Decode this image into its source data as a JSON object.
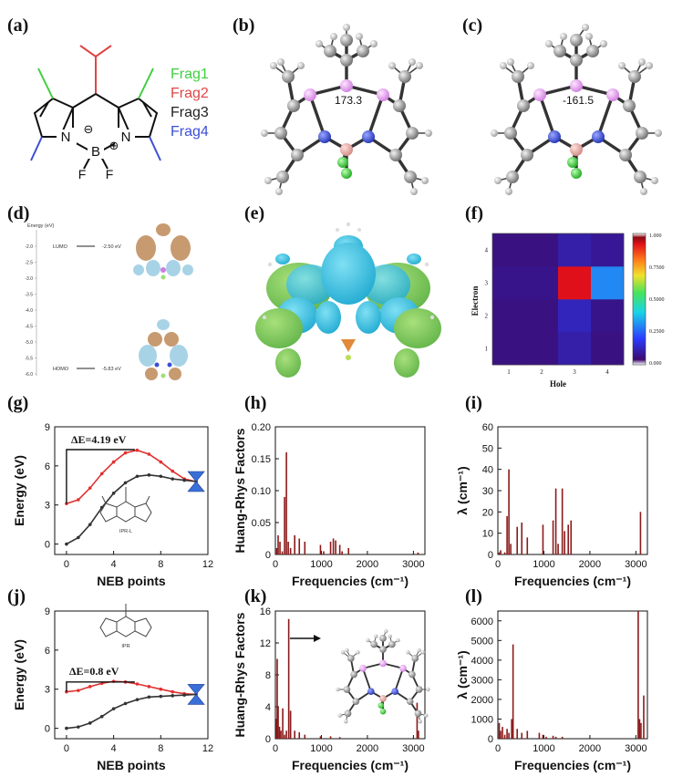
{
  "panels": {
    "a": {
      "label": "(a)",
      "frags": [
        {
          "text": "Frag1",
          "color": "#3fcf3f"
        },
        {
          "text": "Frag2",
          "color": "#e04646"
        },
        {
          "text": "Frag3",
          "color": "#222222"
        },
        {
          "text": "Frag4",
          "color": "#3b4fd6"
        }
      ],
      "atoms": {
        "n1": "N",
        "n2": "N",
        "b": "B",
        "f1": "F",
        "f2": "F",
        "minus": "⊖",
        "plus": "⊕"
      }
    },
    "b": {
      "label": "(b)",
      "angle": "173.3"
    },
    "c": {
      "label": "(c)",
      "angle": "-161.5"
    },
    "d": {
      "label": "(d)",
      "energy_axis": "Energy (eV)",
      "lumo_label": "LUMO",
      "lumo_value": "-2.50 eV",
      "homo_label": "HOMO",
      "homo_value": "-5.83 eV",
      "ticks": [
        "-2.0",
        "-2.5",
        "-3.0",
        "-3.5",
        "-4.0",
        "-4.5",
        "-5.0",
        "-5.5",
        "-6.0"
      ]
    },
    "e": {
      "label": "(e)"
    },
    "f": {
      "label": "(f)",
      "xlabel": "Hole",
      "ylabel": "Electron",
      "colorbar_ticks": [
        "1.000",
        "0.7500",
        "0.5000",
        "0.2500",
        "0.000"
      ]
    },
    "g": {
      "label": "(g)",
      "delta": "ΔE=4.19 eV",
      "molecule_label": "IPR-L"
    },
    "h": {
      "label": "(h)"
    },
    "i": {
      "label": "(i)"
    },
    "j": {
      "label": "(j)",
      "delta": "ΔE=0.8 eV",
      "molecule_label": "IPR"
    },
    "k": {
      "label": "(k)"
    },
    "l": {
      "label": "(l)"
    }
  },
  "chart_data": [
    {
      "id": "f",
      "type": "heatmap",
      "xlabel": "Hole",
      "ylabel": "Electron",
      "x": [
        1,
        2,
        3,
        4
      ],
      "y": [
        1,
        2,
        3,
        4
      ],
      "values": [
        [
          0.02,
          0.02,
          0.06,
          0.02
        ],
        [
          0.02,
          0.02,
          0.08,
          0.03
        ],
        [
          0.03,
          0.03,
          1.0,
          0.25
        ],
        [
          0.02,
          0.02,
          0.06,
          0.04
        ]
      ],
      "colorbar_range": [
        0.0,
        1.0
      ]
    },
    {
      "id": "g",
      "type": "line",
      "xlabel": "NEB points",
      "ylabel": "Energy (eV)",
      "xlim": [
        -1,
        12
      ],
      "ylim": [
        -0.8,
        9
      ],
      "xticks": [
        0,
        4,
        8,
        12
      ],
      "yticks": [
        0,
        3,
        6,
        9
      ],
      "series": [
        {
          "color": "#e03030",
          "x": [
            0,
            1,
            2,
            3,
            4,
            5,
            6,
            7,
            8,
            9,
            10,
            11
          ],
          "y": [
            3.1,
            3.4,
            4.3,
            5.4,
            6.3,
            7.0,
            7.2,
            6.9,
            6.3,
            5.6,
            5.0,
            4.8
          ]
        },
        {
          "color": "#333333",
          "x": [
            0,
            1,
            2,
            3,
            4,
            5,
            6,
            7,
            8,
            9,
            10,
            11
          ],
          "y": [
            0.0,
            0.5,
            1.5,
            2.8,
            3.9,
            4.7,
            5.2,
            5.3,
            5.2,
            5.0,
            4.9,
            4.8
          ]
        }
      ],
      "annotation": "ΔE=4.19 eV"
    },
    {
      "id": "h",
      "type": "bar",
      "xlabel": "Frequencies (cm⁻¹)",
      "ylabel": "Huang-Rhys Factors",
      "xlim": [
        0,
        3250
      ],
      "ylim": [
        0,
        0.2
      ],
      "xticks": [
        0,
        1000,
        2000,
        3000
      ],
      "yticks": [
        0.0,
        0.05,
        0.1,
        0.15,
        0.2
      ],
      "x": [
        30,
        60,
        100,
        150,
        200,
        240,
        280,
        330,
        420,
        520,
        640,
        980,
        1050,
        1200,
        1260,
        1310,
        1400,
        1450,
        1590,
        3100
      ],
      "values": [
        0.01,
        0.03,
        0.02,
        0.005,
        0.09,
        0.16,
        0.02,
        0.01,
        0.03,
        0.025,
        0.02,
        0.015,
        0.005,
        0.02,
        0.025,
        0.022,
        0.015,
        0.005,
        0.01,
        0.003
      ]
    },
    {
      "id": "i",
      "type": "bar",
      "xlabel": "Frequencies (cm⁻¹)",
      "ylabel": "λ (cm⁻¹)",
      "xlim": [
        0,
        3250
      ],
      "ylim": [
        0,
        60
      ],
      "xticks": [
        0,
        1000,
        2000,
        3000
      ],
      "yticks": [
        0,
        10,
        20,
        30,
        40,
        50,
        60
      ],
      "x": [
        30,
        60,
        150,
        200,
        240,
        280,
        420,
        520,
        640,
        980,
        1200,
        1260,
        1310,
        1400,
        1450,
        1530,
        1590,
        3100
      ],
      "values": [
        1,
        2,
        1,
        18,
        40,
        5,
        13,
        15,
        8,
        14,
        16,
        31,
        5,
        31,
        11,
        14,
        16,
        20
      ]
    },
    {
      "id": "j",
      "type": "line",
      "xlabel": "NEB points",
      "ylabel": "Energy (eV)",
      "xlim": [
        -1,
        12
      ],
      "ylim": [
        -0.8,
        9
      ],
      "xticks": [
        0,
        4,
        8,
        12
      ],
      "yticks": [
        0,
        3,
        6,
        9
      ],
      "series": [
        {
          "color": "#e03030",
          "x": [
            0,
            1,
            2,
            3,
            4,
            5,
            6,
            7,
            8,
            9,
            10,
            11
          ],
          "y": [
            2.8,
            2.9,
            3.2,
            3.45,
            3.6,
            3.55,
            3.4,
            3.2,
            3.0,
            2.8,
            2.65,
            2.6
          ]
        },
        {
          "color": "#333333",
          "x": [
            0,
            1,
            2,
            3,
            4,
            5,
            6,
            7,
            8,
            9,
            10,
            11
          ],
          "y": [
            0.0,
            0.1,
            0.4,
            0.9,
            1.5,
            1.9,
            2.2,
            2.4,
            2.45,
            2.5,
            2.55,
            2.6
          ]
        }
      ],
      "annotation": "ΔE=0.8 eV"
    },
    {
      "id": "k",
      "type": "bar",
      "xlabel": "Frequencies (cm⁻¹)",
      "ylabel": "Huang-Rhys Factors",
      "xlim": [
        0,
        3250
      ],
      "ylim": [
        0,
        16
      ],
      "xticks": [
        0,
        1000,
        2000,
        3000
      ],
      "yticks": [
        0,
        4,
        8,
        12,
        16
      ],
      "x": [
        20,
        40,
        60,
        90,
        120,
        160,
        200,
        240,
        290,
        330,
        420,
        520,
        640,
        980,
        1200,
        1400,
        3080,
        3110
      ],
      "values": [
        2.5,
        10,
        4,
        1.5,
        1,
        3.8,
        0.5,
        1,
        15,
        3.5,
        1,
        0.8,
        0.5,
        0.3,
        0.3,
        0.2,
        4.5,
        1
      ]
    },
    {
      "id": "l",
      "type": "bar",
      "xlabel": "Frequencies (cm⁻¹)",
      "ylabel": "λ (cm⁻¹)",
      "xlim": [
        0,
        3250
      ],
      "ylim": [
        0,
        6500
      ],
      "xticks": [
        0,
        1000,
        2000,
        3000
      ],
      "yticks": [
        0,
        1000,
        2000,
        3000,
        4000,
        5000,
        6000
      ],
      "x": [
        30,
        60,
        100,
        150,
        200,
        240,
        300,
        330,
        420,
        520,
        640,
        900,
        980,
        1050,
        1200,
        1260,
        1400,
        3050,
        3080,
        3110,
        3170
      ],
      "values": [
        800,
        400,
        600,
        200,
        500,
        300,
        1000,
        4800,
        500,
        300,
        400,
        300,
        200,
        100,
        150,
        100,
        100,
        6500,
        1000,
        800,
        2200
      ]
    }
  ]
}
